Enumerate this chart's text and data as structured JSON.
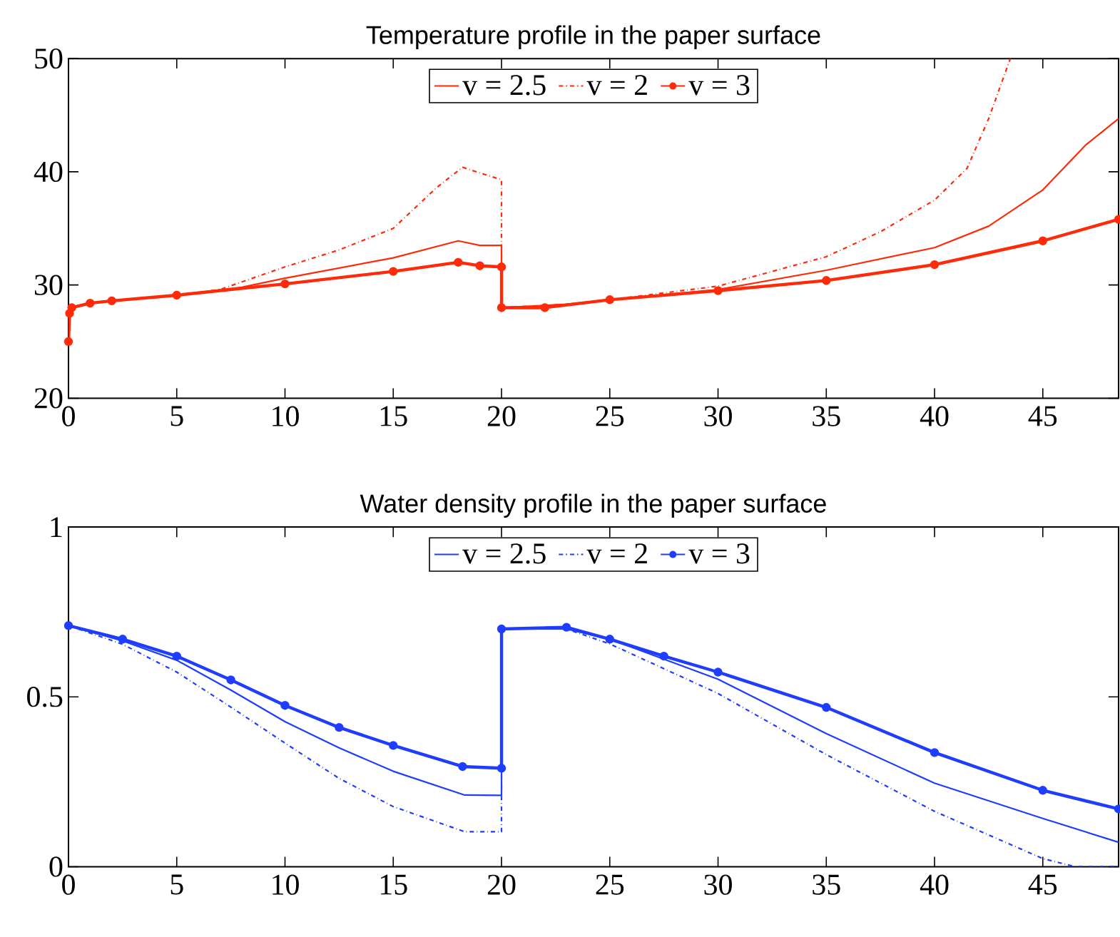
{
  "chart_data": [
    {
      "type": "line",
      "title": "Temperature profile in the paper surface",
      "xlim": [
        0,
        48.5
      ],
      "ylim": [
        20,
        50
      ],
      "xticks": [
        0,
        5,
        10,
        15,
        20,
        25,
        30,
        35,
        40,
        45
      ],
      "yticks": [
        20,
        30,
        40,
        50
      ],
      "legend": "top",
      "grid": false,
      "series": [
        {
          "name": "v = 2.5",
          "color": "#ff2a0a",
          "line_style": "solid",
          "marker": "none",
          "x": [
            0,
            0.1,
            1,
            5,
            8,
            10,
            15,
            18,
            19,
            20,
            20,
            23,
            25,
            30,
            35,
            40,
            42.5,
            45,
            47,
            48.5
          ],
          "values": [
            27.5,
            28,
            28.4,
            29.1,
            29.8,
            30.6,
            32.4,
            33.9,
            33.5,
            33.5,
            28,
            28.3,
            28.7,
            29.6,
            31.3,
            33.3,
            35.2,
            38.4,
            42.4,
            44.7
          ]
        },
        {
          "name": "v = 2",
          "color": "#ff2a0a",
          "line_style": "dashdot",
          "marker": "none",
          "x": [
            0,
            0.1,
            1,
            5,
            7,
            10,
            12.5,
            15,
            17,
            18.2,
            19,
            20,
            20,
            23,
            25,
            30,
            35,
            37.5,
            40,
            41.5,
            42.5,
            43.5
          ],
          "values": [
            27.5,
            28,
            28.4,
            29.1,
            29.6,
            31.6,
            33.1,
            35,
            38.6,
            40.4,
            39.9,
            39.3,
            28,
            28.3,
            28.7,
            29.9,
            32.5,
            34.7,
            37.5,
            40.3,
            44.7,
            50
          ]
        },
        {
          "name": "v = 3",
          "color": "#ff2a0a",
          "line_style": "solid",
          "marker": "circle",
          "x": [
            0,
            0.05,
            0.15,
            1,
            2,
            5,
            10,
            15,
            18,
            19,
            20,
            20,
            22,
            25,
            30,
            35,
            40,
            45,
            48.5
          ],
          "values": [
            25,
            27.5,
            28,
            28.4,
            28.6,
            29.1,
            30.1,
            31.2,
            32,
            31.7,
            31.6,
            28,
            28,
            28.7,
            29.5,
            30.4,
            31.8,
            33.9,
            35.8
          ]
        }
      ]
    },
    {
      "type": "line",
      "title": "Water density profile in the paper surface",
      "xlim": [
        0,
        48.5
      ],
      "ylim": [
        0,
        1
      ],
      "xticks": [
        0,
        5,
        10,
        15,
        20,
        25,
        30,
        35,
        40,
        45
      ],
      "yticks": [
        0,
        0.5,
        1
      ],
      "legend": "top",
      "grid": false,
      "series": [
        {
          "name": "v = 2.5",
          "color": "#1f3dff",
          "line_style": "solid",
          "marker": "none",
          "x": [
            0,
            2.5,
            5,
            7.5,
            10,
            12.5,
            15,
            18.3,
            20,
            20,
            23,
            25,
            30,
            35,
            40,
            45,
            48.5
          ],
          "values": [
            0.71,
            0.665,
            0.608,
            0.52,
            0.427,
            0.35,
            0.281,
            0.211,
            0.21,
            0.7,
            0.7,
            0.67,
            0.552,
            0.392,
            0.246,
            0.142,
            0.072
          ]
        },
        {
          "name": "v = 2",
          "color": "#1f3dff",
          "line_style": "dashdot",
          "marker": "none",
          "x": [
            0,
            2.5,
            5,
            7.5,
            10,
            12.5,
            15,
            18.3,
            20,
            20,
            23,
            25,
            30,
            35,
            40,
            45,
            46.5,
            48.5
          ],
          "values": [
            0.71,
            0.655,
            0.573,
            0.47,
            0.364,
            0.26,
            0.177,
            0.103,
            0.103,
            0.7,
            0.7,
            0.656,
            0.51,
            0.33,
            0.163,
            0.024,
            0,
            0
          ]
        },
        {
          "name": "v = 3",
          "color": "#1f3dff",
          "line_style": "solid",
          "marker": "circle",
          "x": [
            0,
            2.5,
            5,
            7.5,
            10,
            12.5,
            15,
            18.2,
            20,
            20,
            23,
            25,
            27.5,
            30,
            35,
            40,
            45,
            48.5
          ],
          "values": [
            0.71,
            0.67,
            0.62,
            0.55,
            0.475,
            0.41,
            0.357,
            0.295,
            0.29,
            0.7,
            0.705,
            0.67,
            0.62,
            0.573,
            0.469,
            0.336,
            0.225,
            0.17
          ]
        }
      ]
    }
  ]
}
